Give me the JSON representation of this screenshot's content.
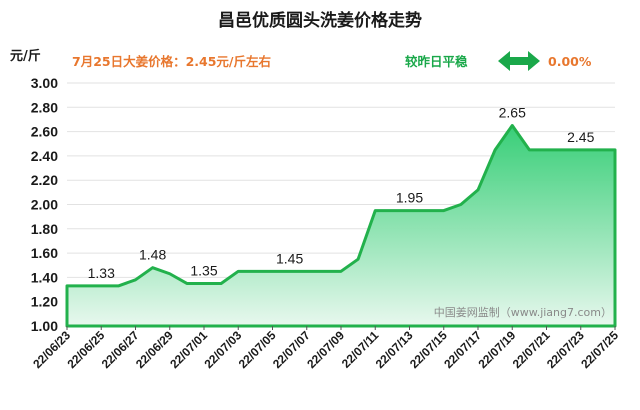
{
  "chart_data": {
    "type": "area",
    "title": "昌邑优质圆头洗姜价格走势",
    "ylabel": "元/斤",
    "ylim": [
      1.0,
      3.0
    ],
    "yticks": [
      "1.00",
      "1.20",
      "1.40",
      "1.60",
      "1.80",
      "2.00",
      "2.20",
      "2.40",
      "2.60",
      "2.80",
      "3.00"
    ],
    "xticks": [
      "22/06/23",
      "22/06/25",
      "22/06/27",
      "22/06/29",
      "22/07/01",
      "22/07/03",
      "22/07/05",
      "22/07/07",
      "22/07/09",
      "22/07/11",
      "22/07/13",
      "22/07/15",
      "22/07/17",
      "22/07/19",
      "22/07/21",
      "22/07/23",
      "22/07/25"
    ],
    "x": [
      "22/06/23",
      "22/06/24",
      "22/06/25",
      "22/06/26",
      "22/06/27",
      "22/06/28",
      "22/06/29",
      "22/06/30",
      "22/07/01",
      "22/07/02",
      "22/07/03",
      "22/07/04",
      "22/07/05",
      "22/07/06",
      "22/07/07",
      "22/07/08",
      "22/07/09",
      "22/07/10",
      "22/07/11",
      "22/07/12",
      "22/07/13",
      "22/07/14",
      "22/07/15",
      "22/07/16",
      "22/07/17",
      "22/07/18",
      "22/07/19",
      "22/07/20",
      "22/07/21",
      "22/07/22",
      "22/07/23",
      "22/07/24",
      "22/07/25"
    ],
    "values": [
      1.33,
      1.33,
      1.33,
      1.33,
      1.38,
      1.48,
      1.43,
      1.35,
      1.35,
      1.35,
      1.45,
      1.45,
      1.45,
      1.45,
      1.45,
      1.45,
      1.45,
      1.55,
      1.95,
      1.95,
      1.95,
      1.95,
      1.95,
      2.0,
      2.12,
      2.45,
      2.65,
      2.45,
      2.45,
      2.45,
      2.45,
      2.45,
      2.45
    ],
    "data_labels": [
      {
        "index": 2,
        "text": "1.33"
      },
      {
        "index": 5,
        "text": "1.48"
      },
      {
        "index": 8,
        "text": "1.35"
      },
      {
        "index": 13,
        "text": "1.45"
      },
      {
        "index": 20,
        "text": "1.95"
      },
      {
        "index": 26,
        "text": "2.65"
      },
      {
        "index": 30,
        "text": "2.45"
      }
    ],
    "price_note": "7月25日大姜价格：2.45元/斤左右",
    "change_label": "较昨日平稳",
    "change_value": "0.00%",
    "watermark": "中国姜网监制（www.jiang7.com）",
    "colors": {
      "line": "#22b14c",
      "fill_top": "#2ecc71",
      "fill_bottom": "#e8f8ee",
      "accent": "#e8772e",
      "arrow": "#1aa84a"
    }
  }
}
